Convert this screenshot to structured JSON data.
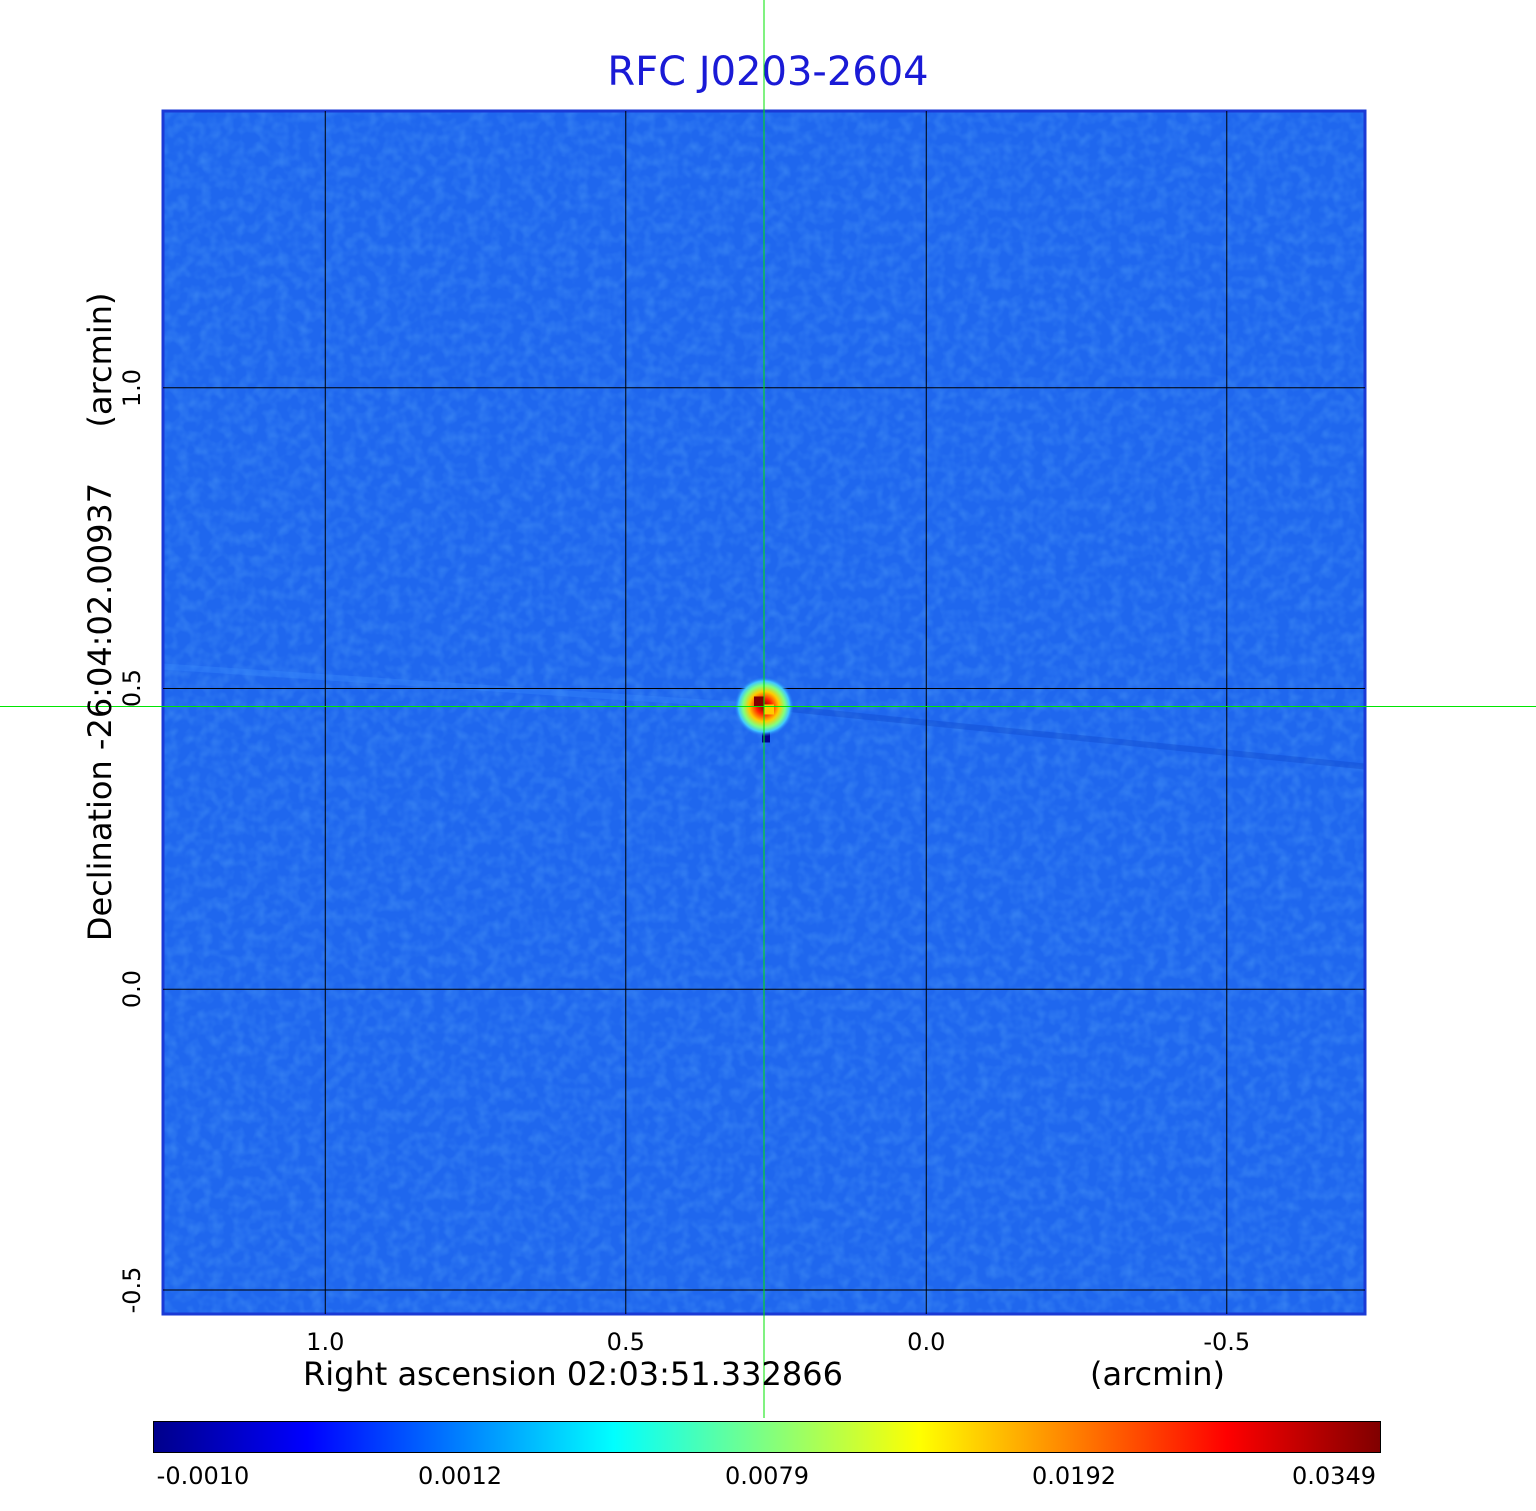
{
  "title": "RFC J0203-2604",
  "x_axis": {
    "label": "Right ascension  02:03:51.332866",
    "unit": "(arcmin)",
    "ticks": [
      "1.0",
      "0.5",
      "0.0",
      "-0.5"
    ],
    "range": [
      1.27,
      -0.73
    ]
  },
  "y_axis": {
    "label": "Declination  -26:04:02.00937",
    "unit": "(arcmin)",
    "ticks": [
      "-0.5",
      "0.0",
      "0.5",
      "1.0"
    ],
    "range": [
      -0.54,
      1.46
    ]
  },
  "colorbar": {
    "ticks": [
      "-0.0010",
      "0.0012",
      "0.0079",
      "0.0192",
      "0.0349"
    ],
    "colormap": "jet",
    "colors": [
      "#00008b",
      "#0000ff",
      "#0080ff",
      "#00ffff",
      "#80ff80",
      "#ffff00",
      "#ff8000",
      "#ff0000",
      "#800000"
    ]
  },
  "colors": {
    "title": "#1a1ad6",
    "background_map": "#1f67ee",
    "crosshair": "#00e600",
    "grid": "#000000"
  },
  "source_peak": {
    "x_arcmin": 0.27,
    "y_arcmin": 0.47
  },
  "crosshair": {
    "x_arcmin": 0.27,
    "y_arcmin": 0.47
  }
}
